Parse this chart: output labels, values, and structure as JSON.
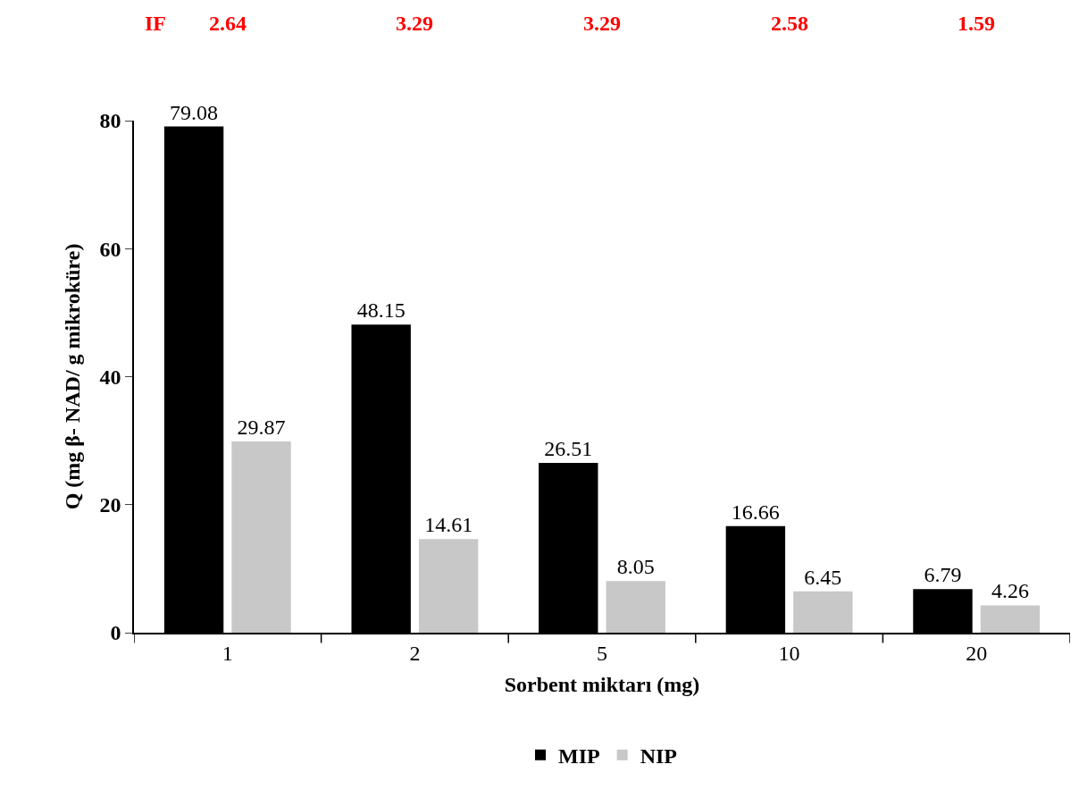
{
  "chart_data": {
    "type": "bar",
    "xlabel": "Sorbent miktarı (mg)",
    "ylabel": "Q (mg β- NAD/ g mikroküre)",
    "categories": [
      "1",
      "2",
      "5",
      "10",
      "20"
    ],
    "series": [
      {
        "name": "MIP",
        "color": "#000000",
        "values": [
          79.08,
          48.15,
          26.51,
          16.66,
          6.79
        ]
      },
      {
        "name": "NIP",
        "color": "#c8c8c8",
        "values": [
          29.87,
          14.61,
          8.05,
          6.45,
          4.26
        ]
      }
    ],
    "ylim": [
      0,
      80
    ],
    "yticks": [
      0,
      20,
      40,
      60,
      80
    ],
    "data_labels": true,
    "legend": "bottom",
    "annotations": [
      "IF",
      "2.64",
      "3.29",
      "3.29",
      "2.58",
      "1.59"
    ]
  }
}
